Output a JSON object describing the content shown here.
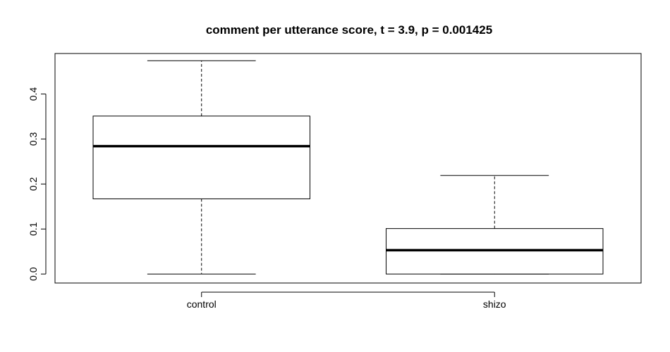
{
  "chart_data": {
    "type": "boxplot",
    "title": "comment per utterance score, t = 3.9, p = 0.001425",
    "xlabel": "",
    "ylabel": "",
    "categories": [
      "control",
      "shizo"
    ],
    "ylim": [
      -0.02,
      0.49
    ],
    "yticks": [
      0.0,
      0.1,
      0.2,
      0.3,
      0.4
    ],
    "ytick_labels": [
      "0.0",
      "0.1",
      "0.2",
      "0.3",
      "0.4"
    ],
    "boxes": [
      {
        "label": "control",
        "whisker_low": 0.0,
        "q1": 0.167,
        "median": 0.284,
        "q3": 0.351,
        "whisker_high": 0.474
      },
      {
        "label": "shizo",
        "whisker_low": 0.0,
        "q1": 0.0,
        "median": 0.053,
        "q3": 0.101,
        "whisker_high": 0.219
      }
    ],
    "grid": false,
    "colors": {
      "box": "#000000",
      "background": "#ffffff"
    }
  }
}
